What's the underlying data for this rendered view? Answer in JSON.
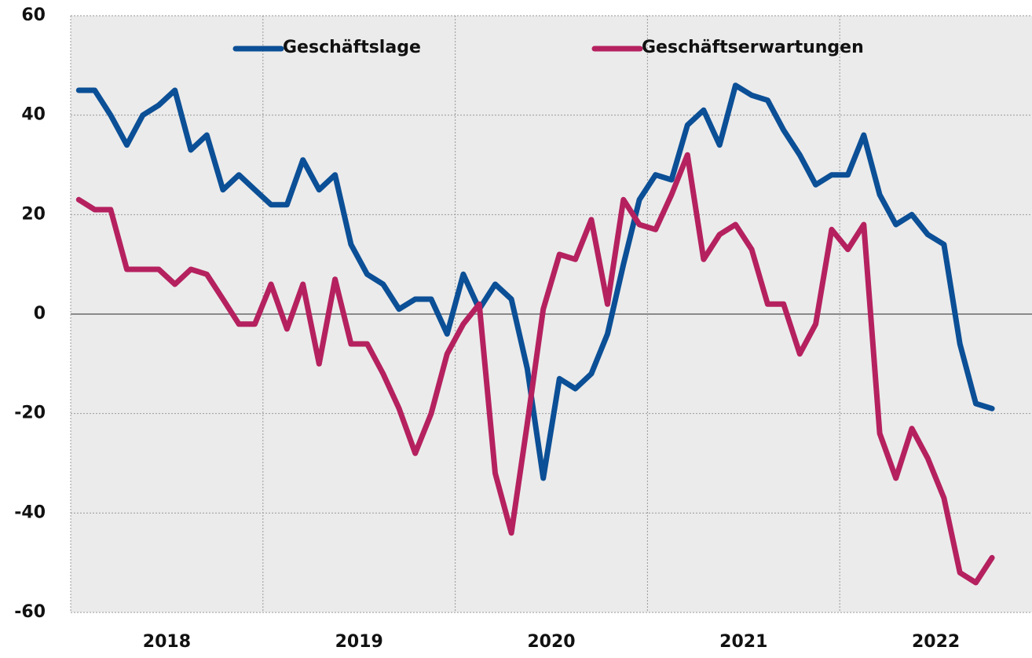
{
  "chart_data": {
    "type": "line",
    "x": [
      2018.042,
      2018.125,
      2018.208,
      2018.292,
      2018.375,
      2018.458,
      2018.542,
      2018.625,
      2018.708,
      2018.792,
      2018.875,
      2018.958,
      2019.042,
      2019.125,
      2019.208,
      2019.292,
      2019.375,
      2019.458,
      2019.542,
      2019.625,
      2019.708,
      2019.792,
      2019.875,
      2019.958,
      2020.042,
      2020.125,
      2020.208,
      2020.292,
      2020.375,
      2020.458,
      2020.542,
      2020.625,
      2020.708,
      2020.792,
      2020.875,
      2020.958,
      2021.042,
      2021.125,
      2021.208,
      2021.292,
      2021.375,
      2021.458,
      2021.542,
      2021.625,
      2021.708,
      2021.792,
      2021.875,
      2021.958,
      2022.042,
      2022.125,
      2022.208,
      2022.292,
      2022.375,
      2022.458,
      2022.542,
      2022.625,
      2022.708,
      2022.792
    ],
    "series": [
      {
        "name": "Geschäftslage",
        "color": "#0b4f96",
        "values": [
          45,
          45,
          40,
          34,
          40,
          42,
          45,
          33,
          36,
          25,
          28,
          25,
          22,
          22,
          31,
          25,
          28,
          14,
          8,
          6,
          1,
          3,
          3,
          -4,
          8,
          1,
          6,
          3,
          -11,
          -33,
          -13,
          -15,
          -12,
          -4,
          10,
          23,
          28,
          27,
          38,
          41,
          34,
          46,
          44,
          43,
          37,
          32,
          26,
          28,
          28,
          36,
          24,
          18,
          20,
          16,
          14,
          -6,
          -18,
          -19
        ]
      },
      {
        "name": "Geschäftserwartungen",
        "color": "#b5215f",
        "values": [
          23,
          21,
          21,
          9,
          9,
          9,
          6,
          9,
          8,
          3,
          -2,
          -2,
          6,
          -3,
          6,
          -10,
          7,
          -6,
          -6,
          -12,
          -19,
          -28,
          -20,
          -8,
          -2,
          2,
          -32,
          -44,
          -22,
          1,
          12,
          11,
          19,
          2,
          23,
          18,
          17,
          24,
          32,
          11,
          16,
          18,
          13,
          2,
          2,
          -8,
          -2,
          17,
          13,
          18,
          -24,
          -33,
          -23,
          -29,
          -37,
          -52,
          -54,
          -49
        ]
      }
    ],
    "xlim": [
      2018,
      2023
    ],
    "xticks": [
      {
        "value": 2018.5,
        "label": "2018"
      },
      {
        "value": 2019.5,
        "label": "2019"
      },
      {
        "value": 2020.5,
        "label": "2020"
      },
      {
        "value": 2021.5,
        "label": "2021"
      },
      {
        "value": 2022.5,
        "label": "2022"
      }
    ],
    "xgrid": [
      2018,
      2019,
      2020,
      2021,
      2022
    ],
    "ylim": [
      -60,
      60
    ],
    "yticks": [
      -60,
      -40,
      -20,
      0,
      20,
      40,
      60
    ],
    "grid": true,
    "legend": "top"
  }
}
